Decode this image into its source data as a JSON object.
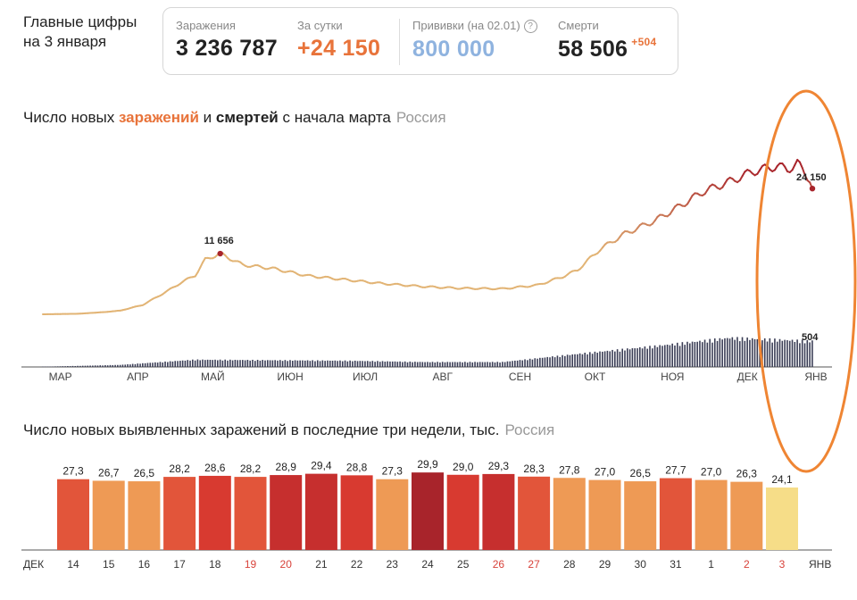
{
  "header": {
    "title_line1": "Главные цифры",
    "title_line2": "на 3 января"
  },
  "stats": {
    "infections": {
      "label": "Заражения",
      "value": "3 236 787"
    },
    "daily": {
      "label": "За сутки",
      "value": "+24 150"
    },
    "vaccinations": {
      "label": "Прививки (на 02.01)",
      "value": "800 000",
      "help_icon": "question-icon"
    },
    "deaths": {
      "label": "Смерти",
      "value": "58 506",
      "delta": "+504"
    }
  },
  "section1": {
    "title_prefix": "Число новых ",
    "title_infections": "заражений",
    "title_mid": " и ",
    "title_deaths": "смертей",
    "title_suffix": " с начала марта",
    "region": "Россия"
  },
  "section2": {
    "title": "Число новых выявленных заражений в последние три недели, тыс.",
    "region": "Россия"
  },
  "colors": {
    "infection_line_early": "#e2b475",
    "infection_line_late": "#a8242b",
    "death_bars": "#3a3d55",
    "accent_orange": "#e8733a",
    "vaccine_blue": "#8fb3df",
    "highlight_circle": "#ef8533"
  },
  "chart_data": [
    {
      "type": "line",
      "title": "Число новых заражений и смертей с начала марта",
      "x_tick_labels": [
        "МАР",
        "АПР",
        "МАЙ",
        "ИЮН",
        "ИЮЛ",
        "АВГ",
        "СЕН",
        "ОКТ",
        "НОЯ",
        "ДЕК",
        "ЯНВ"
      ],
      "series": [
        {
          "kind": "line",
          "x": [
            "2020-03-01",
            "2020-03-15",
            "2020-03-25",
            "2020-04-01",
            "2020-04-10",
            "2020-04-20",
            "2020-04-25",
            "2020-05-01",
            "2020-05-05",
            "2020-05-11",
            "2020-05-20",
            "2020-06-01",
            "2020-06-15",
            "2020-07-01",
            "2020-07-15",
            "2020-08-01",
            "2020-08-15",
            "2020-09-01",
            "2020-09-15",
            "2020-09-25",
            "2020-10-01",
            "2020-10-10",
            "2020-10-20",
            "2020-11-01",
            "2020-11-10",
            "2020-11-20",
            "2020-12-01",
            "2020-12-10",
            "2020-12-20",
            "2020-12-24",
            "2020-12-28",
            "2021-01-01",
            "2021-01-03"
          ],
          "values": [
            0,
            100,
            400,
            700,
            1800,
            4500,
            6000,
            7500,
            10500,
            11656,
            9500,
            8800,
            7400,
            6600,
            5900,
            5300,
            5000,
            4900,
            5600,
            7200,
            8500,
            12500,
            15500,
            18000,
            20500,
            23500,
            25500,
            27400,
            28500,
            27800,
            29000,
            26500,
            24150
          ]
        },
        {
          "kind": "bar",
          "x_start": "2020-03-01",
          "x_end": "2021-01-03",
          "values_by_month": {
            "МАР": 5,
            "АПР": 40,
            "МАЙ": 140,
            "ИЮН": 130,
            "ИЮЛ": 120,
            "АВГ": 95,
            "СЕН": 95,
            "ОКТ": 250,
            "НОЯ": 400,
            "ДЕК": 560,
            "ЯНВ": 500
          }
        }
      ],
      "annotations": [
        {
          "label": "11 656",
          "x": "2020-05-11",
          "value": 11656
        },
        {
          "label": "24 150",
          "x": "2021-01-03",
          "value": 24150
        },
        {
          "label": "504",
          "x": "2021-01-03",
          "series": "deaths"
        }
      ],
      "legend": "none",
      "grid": false
    },
    {
      "type": "bar",
      "title": "Число новых выявленных заражений в последние три недели, тыс.",
      "categories": [
        "14",
        "15",
        "16",
        "17",
        "18",
        "19",
        "20",
        "21",
        "22",
        "23",
        "24",
        "25",
        "26",
        "27",
        "28",
        "29",
        "30",
        "31",
        "1",
        "2",
        "3"
      ],
      "values": [
        27.3,
        26.7,
        26.5,
        28.2,
        28.6,
        28.2,
        28.9,
        29.4,
        28.8,
        27.3,
        29.9,
        29.0,
        29.3,
        28.3,
        27.8,
        27.0,
        26.5,
        27.7,
        27.0,
        26.3,
        24.1
      ],
      "value_labels": [
        "27,3",
        "26,7",
        "26,5",
        "28,2",
        "28,6",
        "28,2",
        "28,9",
        "29,4",
        "28,8",
        "27,3",
        "29,9",
        "29,0",
        "29,3",
        "28,3",
        "27,8",
        "27,0",
        "26,5",
        "27,7",
        "27,0",
        "26,3",
        "24,1"
      ],
      "weekend_categories": [
        "19",
        "20",
        "26",
        "27",
        "2",
        "3"
      ],
      "month_start_label": "ДЕК",
      "month_end_label": "ЯНВ",
      "bar_colors": [
        "#e2553a",
        "#ee9a55",
        "#ee9a55",
        "#e2553a",
        "#d83a30",
        "#e2553a",
        "#c62f2e",
        "#c62f2e",
        "#d83a30",
        "#ee9a55",
        "#a8242b",
        "#d83a30",
        "#c62f2e",
        "#e2553a",
        "#ee9a55",
        "#ee9a55",
        "#ee9a55",
        "#e2553a",
        "#ee9a55",
        "#ee9a55",
        "#f6dd88"
      ]
    }
  ]
}
